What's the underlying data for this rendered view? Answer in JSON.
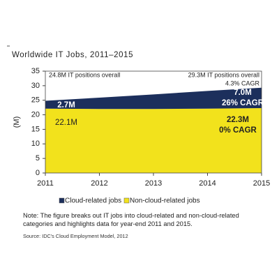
{
  "chart_data": {
    "type": "stacked_area",
    "title": "Worldwide IT Jobs, 2011–2015",
    "y_label": "(M)",
    "x": [
      2011,
      2012,
      2013,
      2014,
      2015
    ],
    "xlim": [
      2011,
      2015
    ],
    "xticks": [
      2011,
      2012,
      2013,
      2014,
      2015
    ],
    "ylim": [
      0,
      35
    ],
    "yticks": [
      0,
      5,
      10,
      15,
      20,
      25,
      30,
      35
    ],
    "series": [
      {
        "name": "Non-cloud-related jobs",
        "color": "#f2e21c",
        "values": [
          22.1,
          22.0,
          22.0,
          22.1,
          22.3
        ],
        "value_labels": [
          "22.1M",
          null,
          null,
          null,
          "22.3M"
        ]
      },
      {
        "name": "Cloud-related jobs",
        "color": "#1c2f5c",
        "values": [
          2.7,
          3.9,
          5.0,
          6.1,
          7.0
        ],
        "value_labels": [
          "2.7M",
          null,
          null,
          null,
          "7.0M"
        ]
      }
    ],
    "annotations": [
      "24.8M IT positions overall",
      "29.3M IT positions overall",
      "4.3% CAGR",
      "26% CAGR",
      "0% CAGR"
    ],
    "note": "Note: The figure breaks out IT jobs into cloud-related and non-cloud-related categories and highlights data for year-end 2011 and 2015.",
    "source": "Source: IDC's Cloud Employment Model, 2012"
  }
}
